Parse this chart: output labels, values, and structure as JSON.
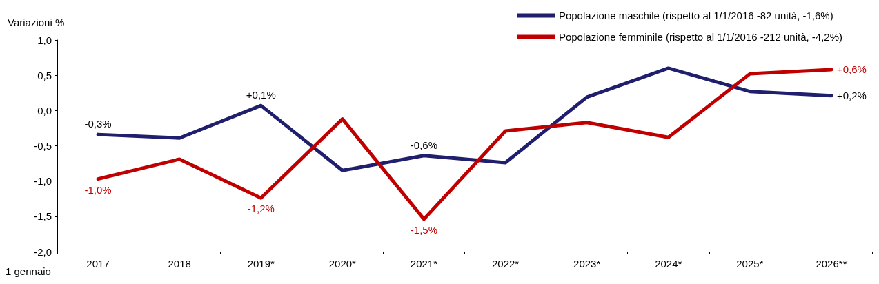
{
  "chart_data": {
    "type": "line",
    "ylabel": "Variazioni %",
    "xlabel": "1 gennaio",
    "categories": [
      "2017",
      "2018",
      "2019*",
      "2020*",
      "2021*",
      "2022*",
      "2023*",
      "2024*",
      "2025*",
      "2026**"
    ],
    "series": [
      {
        "name": "Popolazione maschile (rispetto al 1/1/2016 -82 unità, -1,6%)",
        "color": "#1f1f6e",
        "values": [
          -0.34,
          -0.39,
          0.07,
          -0.85,
          -0.64,
          -0.74,
          0.19,
          0.6,
          0.27,
          0.21
        ],
        "value_labels": [
          "-0,3%",
          null,
          "+0,1%",
          null,
          "-0,6%",
          null,
          null,
          null,
          null,
          "+0,2%"
        ]
      },
      {
        "name": "Popolazione femminile (rispetto al 1/1/2016 -212 unità, -4,2%)",
        "color": "#c00000",
        "values": [
          -0.97,
          -0.69,
          -1.24,
          -0.12,
          -1.54,
          -0.29,
          -0.17,
          -0.38,
          0.52,
          0.58
        ],
        "value_labels": [
          "-1,0%",
          null,
          "-1,2%",
          null,
          "-1,5%",
          null,
          null,
          null,
          null,
          "+0,6%"
        ]
      }
    ],
    "ylim": [
      -2,
      1
    ],
    "yticks": [
      {
        "value": -2,
        "label": "-2,0"
      },
      {
        "value": -1.5,
        "label": "-1,5"
      },
      {
        "value": -1,
        "label": "-1,0"
      },
      {
        "value": -0.5,
        "label": "-0,5"
      },
      {
        "value": 0,
        "label": "0,0"
      },
      {
        "value": 0.5,
        "label": "0,5"
      },
      {
        "value": 1,
        "label": "1,0"
      }
    ],
    "grid": false,
    "legend": "top right",
    "marker": "none",
    "line_style": "solid"
  }
}
